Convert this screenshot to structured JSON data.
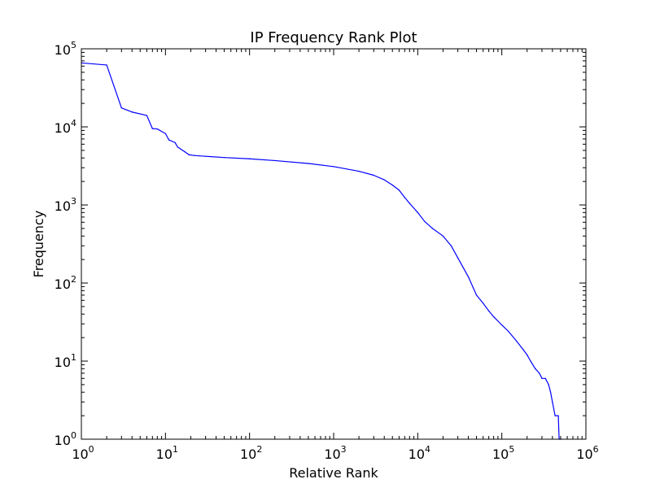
{
  "chart_data": {
    "type": "line",
    "title": "IP Frequency Rank Plot",
    "xlabel": "Relative Rank",
    "ylabel": "Frequency",
    "xscale": "log",
    "yscale": "log",
    "xlim": [
      1,
      1000000
    ],
    "ylim": [
      1,
      100000
    ],
    "grid": false,
    "x_ticks": [
      {
        "value": 1,
        "base": "10",
        "exp": "0"
      },
      {
        "value": 10,
        "base": "10",
        "exp": "1"
      },
      {
        "value": 100,
        "base": "10",
        "exp": "2"
      },
      {
        "value": 1000,
        "base": "10",
        "exp": "3"
      },
      {
        "value": 10000,
        "base": "10",
        "exp": "4"
      },
      {
        "value": 100000,
        "base": "10",
        "exp": "5"
      },
      {
        "value": 1000000,
        "base": "10",
        "exp": "6"
      }
    ],
    "y_ticks": [
      {
        "value": 1,
        "base": "10",
        "exp": "0"
      },
      {
        "value": 10,
        "base": "10",
        "exp": "1"
      },
      {
        "value": 100,
        "base": "10",
        "exp": "2"
      },
      {
        "value": 1000,
        "base": "10",
        "exp": "3"
      },
      {
        "value": 10000,
        "base": "10",
        "exp": "4"
      },
      {
        "value": 100000,
        "base": "10",
        "exp": "5"
      }
    ],
    "series": [
      {
        "color": "#0000ff",
        "points": [
          [
            1,
            66000
          ],
          [
            2,
            62000
          ],
          [
            3,
            17500
          ],
          [
            4,
            15500
          ],
          [
            6,
            14000
          ],
          [
            7,
            9500
          ],
          [
            8,
            9400
          ],
          [
            10,
            8200
          ],
          [
            11,
            6800
          ],
          [
            13,
            6300
          ],
          [
            14,
            5500
          ],
          [
            16,
            5000
          ],
          [
            17,
            4800
          ],
          [
            19,
            4400
          ],
          [
            22,
            4300
          ],
          [
            30,
            4200
          ],
          [
            50,
            4050
          ],
          [
            100,
            3900
          ],
          [
            200,
            3700
          ],
          [
            500,
            3400
          ],
          [
            1000,
            3100
          ],
          [
            2000,
            2700
          ],
          [
            3000,
            2400
          ],
          [
            4000,
            2100
          ],
          [
            5000,
            1800
          ],
          [
            6000,
            1550
          ],
          [
            7000,
            1250
          ],
          [
            8000,
            1050
          ],
          [
            10000,
            800
          ],
          [
            12000,
            620
          ],
          [
            15000,
            500
          ],
          [
            20000,
            400
          ],
          [
            25000,
            300
          ],
          [
            30000,
            210
          ],
          [
            40000,
            120
          ],
          [
            50000,
            70
          ],
          [
            60000,
            55
          ],
          [
            70000,
            44
          ],
          [
            80000,
            37
          ],
          [
            100000,
            29
          ],
          [
            120000,
            24
          ],
          [
            150000,
            18
          ],
          [
            180000,
            14
          ],
          [
            200000,
            12
          ],
          [
            220000,
            10
          ],
          [
            250000,
            8
          ],
          [
            280000,
            7
          ],
          [
            300000,
            6
          ],
          [
            330000,
            6
          ],
          [
            360000,
            5
          ],
          [
            380000,
            4
          ],
          [
            400000,
            3
          ],
          [
            430000,
            2
          ],
          [
            470000,
            2
          ],
          [
            480000,
            1
          ]
        ]
      }
    ]
  }
}
